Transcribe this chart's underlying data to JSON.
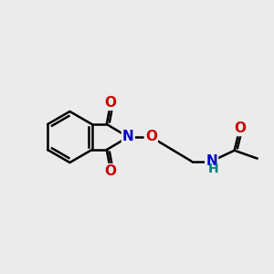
{
  "background_color": "#ebebeb",
  "bond_color": "#000000",
  "bond_width": 1.8,
  "atom_colors": {
    "N": "#0000cc",
    "O": "#cc0000",
    "NH": "#008080",
    "H": "#008080"
  },
  "font_size_atoms": 11,
  "figsize": [
    3.0,
    3.0
  ],
  "dpi": 100
}
